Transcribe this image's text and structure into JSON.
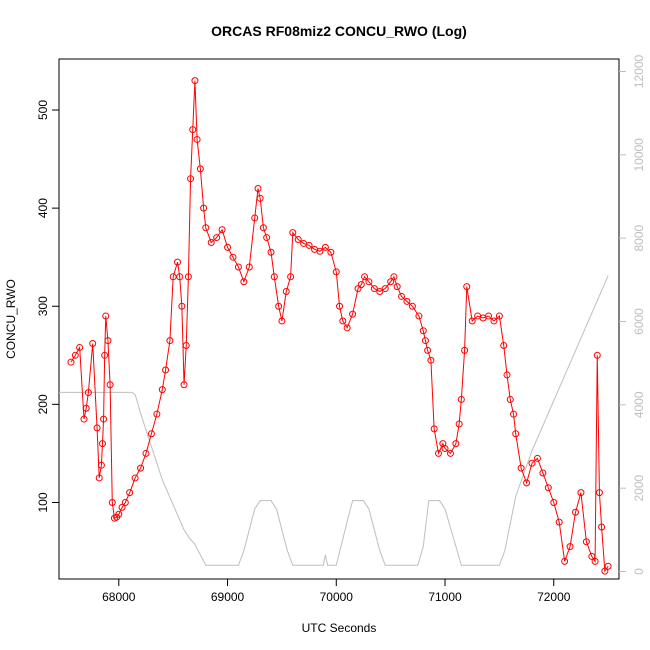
{
  "chart_data": {
    "type": "line",
    "title": "ORCAS RF08miz2 CONCU_RWO (Log)",
    "xlabel": "UTC Seconds",
    "ylabel": "CONCU_RWO",
    "xlim": [
      67450,
      72600
    ],
    "ylim": [
      22,
      552
    ],
    "y2lim": [
      -180,
      12300
    ],
    "x_ticks": [
      68000,
      69000,
      70000,
      71000,
      72000
    ],
    "y_ticks": [
      100,
      200,
      300,
      400,
      500
    ],
    "y2_ticks": [
      0,
      2000,
      4000,
      6000,
      8000,
      10000,
      12000
    ],
    "grid": false,
    "colors": {
      "primary": "#ff0000",
      "secondary": "#bebebe"
    },
    "series": [
      {
        "axis": "left",
        "marker": "open-circle",
        "x": [
          67560,
          67600,
          67640,
          67680,
          67700,
          67720,
          67760,
          67800,
          67820,
          67840,
          67850,
          67860,
          67870,
          67880,
          67900,
          67920,
          67940,
          67960,
          67980,
          68000,
          68030,
          68060,
          68100,
          68150,
          68200,
          68250,
          68300,
          68350,
          68400,
          68430,
          68470,
          68500,
          68540,
          68560,
          68580,
          68600,
          68620,
          68640,
          68660,
          68680,
          68700,
          68720,
          68750,
          68780,
          68800,
          68850,
          68900,
          68950,
          69000,
          69050,
          69100,
          69150,
          69200,
          69250,
          69280,
          69300,
          69330,
          69360,
          69400,
          69430,
          69470,
          69500,
          69540,
          69580,
          69600,
          69650,
          69700,
          69750,
          69800,
          69850,
          69900,
          69950,
          70000,
          70030,
          70060,
          70100,
          70150,
          70200,
          70230,
          70260,
          70300,
          70350,
          70400,
          70450,
          70500,
          70530,
          70560,
          70600,
          70650,
          70700,
          70760,
          70800,
          70820,
          70840,
          70870,
          70900,
          70940,
          70980,
          71000,
          71050,
          71100,
          71130,
          71150,
          71180,
          71200,
          71250,
          71300,
          71350,
          71400,
          71450,
          71500,
          71540,
          71570,
          71600,
          71630,
          71650,
          71700,
          71750,
          71800,
          71850,
          71900,
          71950,
          72000,
          72050,
          72100,
          72150,
          72200,
          72250,
          72300,
          72350,
          72380,
          72400,
          72420,
          72440,
          72470,
          72500
        ],
        "y": [
          243,
          250,
          258,
          185,
          196,
          212,
          262,
          176,
          125,
          138,
          160,
          185,
          250,
          290,
          265,
          220,
          100,
          84,
          85,
          88,
          95,
          100,
          110,
          125,
          135,
          150,
          170,
          190,
          215,
          235,
          265,
          330,
          345,
          330,
          300,
          220,
          260,
          330,
          430,
          480,
          530,
          470,
          440,
          400,
          380,
          365,
          370,
          378,
          360,
          350,
          340,
          325,
          340,
          390,
          420,
          410,
          380,
          370,
          355,
          330,
          300,
          285,
          315,
          330,
          375,
          368,
          364,
          362,
          358,
          356,
          360,
          355,
          335,
          300,
          285,
          278,
          292,
          318,
          322,
          330,
          325,
          318,
          315,
          318,
          325,
          330,
          320,
          310,
          305,
          300,
          290,
          275,
          265,
          255,
          245,
          175,
          150,
          160,
          155,
          150,
          160,
          180,
          205,
          255,
          320,
          285,
          290,
          288,
          290,
          285,
          290,
          260,
          230,
          205,
          190,
          170,
          135,
          120,
          140,
          145,
          130,
          115,
          100,
          80,
          40,
          55,
          90,
          110,
          60,
          45,
          40,
          250,
          110,
          75,
          30,
          35
        ]
      },
      {
        "axis": "right",
        "marker": "none",
        "x": [
          67450,
          67550,
          68100,
          68120,
          68150,
          68200,
          68300,
          68400,
          68500,
          68600,
          68650,
          68700,
          68750,
          68800,
          68850,
          69000,
          69100,
          69150,
          69250,
          69300,
          69400,
          69450,
          69550,
          69600,
          69650,
          69800,
          69850,
          69880,
          69900,
          69920,
          69950,
          70000,
          70100,
          70150,
          70250,
          70300,
          70400,
          70450,
          70500,
          70600,
          70750,
          70800,
          70850,
          70950,
          71000,
          71100,
          71150,
          71300,
          71350,
          71450,
          71500,
          71550,
          71650,
          71800,
          71900,
          72000,
          72100,
          72200,
          72300,
          72400,
          72500
        ],
        "y": [
          4300,
          4300,
          4300,
          4300,
          4250,
          3800,
          3000,
          2200,
          1600,
          1000,
          800,
          650,
          400,
          150,
          150,
          150,
          150,
          500,
          1500,
          1700,
          1700,
          1500,
          500,
          150,
          150,
          150,
          150,
          150,
          400,
          150,
          150,
          150,
          1200,
          1700,
          1700,
          1500,
          500,
          150,
          150,
          150,
          150,
          600,
          1700,
          1700,
          1500,
          600,
          150,
          150,
          150,
          150,
          150,
          500,
          1800,
          2900,
          3500,
          4100,
          4700,
          5300,
          5900,
          6500,
          7100
        ]
      }
    ]
  }
}
